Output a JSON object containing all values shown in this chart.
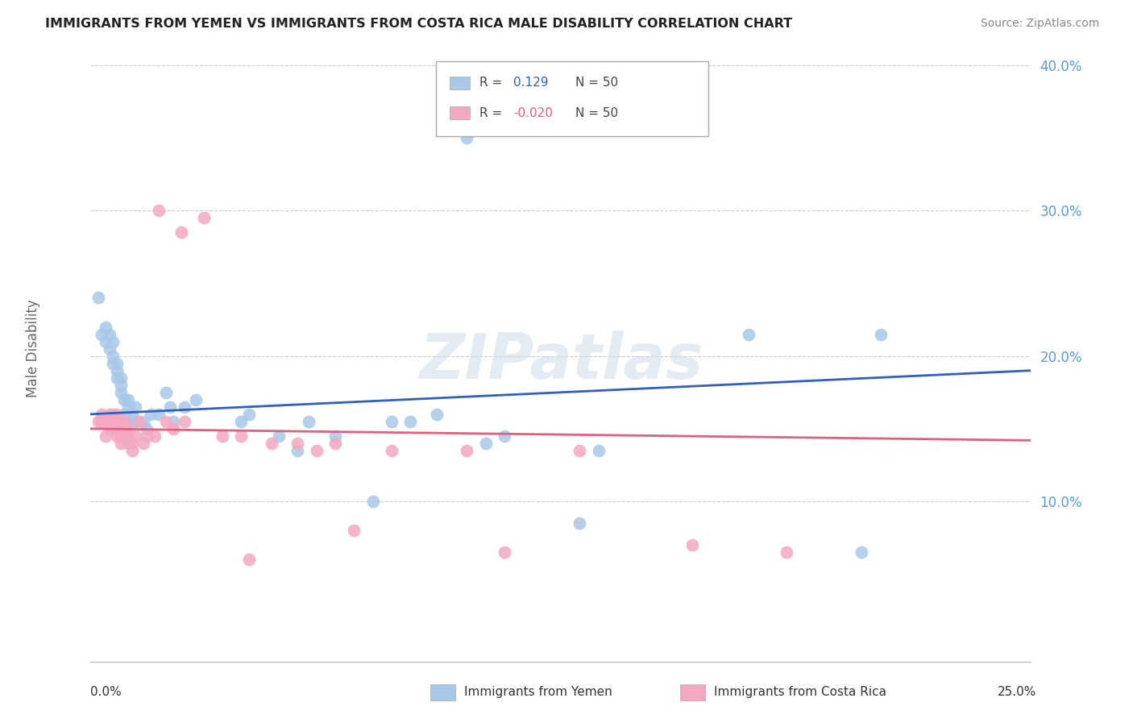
{
  "title": "IMMIGRANTS FROM YEMEN VS IMMIGRANTS FROM COSTA RICA MALE DISABILITY CORRELATION CHART",
  "source": "Source: ZipAtlas.com",
  "ylabel": "Male Disability",
  "xlim": [
    0.0,
    0.25
  ],
  "ylim": [
    -0.01,
    0.42
  ],
  "yticks": [
    0.1,
    0.2,
    0.3,
    0.4
  ],
  "ytick_labels": [
    "10.0%",
    "20.0%",
    "30.0%",
    "40.0%"
  ],
  "R_yemen": 0.129,
  "N_yemen": 50,
  "R_costa_rica": -0.02,
  "N_costa_rica": 50,
  "yemen_color": "#a8c8e8",
  "costa_rica_color": "#f4a8c0",
  "line_yemen_color": "#3060c0",
  "line_costa_rica_color": "#e06080",
  "yemen_line_y0": 0.16,
  "yemen_line_y1": 0.19,
  "costa_rica_line_y0": 0.15,
  "costa_rica_line_y1": 0.142,
  "yemen_x": [
    0.002,
    0.003,
    0.004,
    0.004,
    0.005,
    0.005,
    0.006,
    0.006,
    0.006,
    0.007,
    0.007,
    0.007,
    0.008,
    0.008,
    0.008,
    0.009,
    0.009,
    0.01,
    0.01,
    0.011,
    0.011,
    0.012,
    0.012,
    0.014,
    0.015,
    0.016,
    0.018,
    0.02,
    0.021,
    0.022,
    0.025,
    0.028,
    0.04,
    0.042,
    0.05,
    0.055,
    0.058,
    0.065,
    0.075,
    0.08,
    0.085,
    0.092,
    0.1,
    0.105,
    0.11,
    0.13,
    0.135,
    0.175,
    0.205,
    0.21
  ],
  "yemen_y": [
    0.24,
    0.215,
    0.21,
    0.22,
    0.205,
    0.215,
    0.195,
    0.2,
    0.21,
    0.185,
    0.19,
    0.195,
    0.175,
    0.18,
    0.185,
    0.17,
    0.16,
    0.165,
    0.17,
    0.155,
    0.16,
    0.165,
    0.155,
    0.155,
    0.15,
    0.16,
    0.16,
    0.175,
    0.165,
    0.155,
    0.165,
    0.17,
    0.155,
    0.16,
    0.145,
    0.135,
    0.155,
    0.145,
    0.1,
    0.155,
    0.155,
    0.16,
    0.35,
    0.14,
    0.145,
    0.085,
    0.135,
    0.215,
    0.065,
    0.215
  ],
  "costa_rica_x": [
    0.002,
    0.003,
    0.003,
    0.004,
    0.005,
    0.005,
    0.005,
    0.006,
    0.006,
    0.006,
    0.007,
    0.007,
    0.007,
    0.007,
    0.008,
    0.008,
    0.008,
    0.009,
    0.009,
    0.009,
    0.01,
    0.01,
    0.01,
    0.011,
    0.011,
    0.012,
    0.013,
    0.014,
    0.015,
    0.017,
    0.018,
    0.02,
    0.022,
    0.024,
    0.025,
    0.03,
    0.035,
    0.04,
    0.042,
    0.048,
    0.055,
    0.06,
    0.065,
    0.07,
    0.08,
    0.1,
    0.11,
    0.13,
    0.16,
    0.185
  ],
  "costa_rica_y": [
    0.155,
    0.16,
    0.155,
    0.145,
    0.155,
    0.15,
    0.16,
    0.155,
    0.15,
    0.16,
    0.145,
    0.15,
    0.155,
    0.16,
    0.14,
    0.145,
    0.155,
    0.145,
    0.15,
    0.155,
    0.14,
    0.145,
    0.15,
    0.135,
    0.14,
    0.145,
    0.155,
    0.14,
    0.145,
    0.145,
    0.3,
    0.155,
    0.15,
    0.285,
    0.155,
    0.295,
    0.145,
    0.145,
    0.06,
    0.14,
    0.14,
    0.135,
    0.14,
    0.08,
    0.135,
    0.135,
    0.065,
    0.135,
    0.07,
    0.065
  ]
}
